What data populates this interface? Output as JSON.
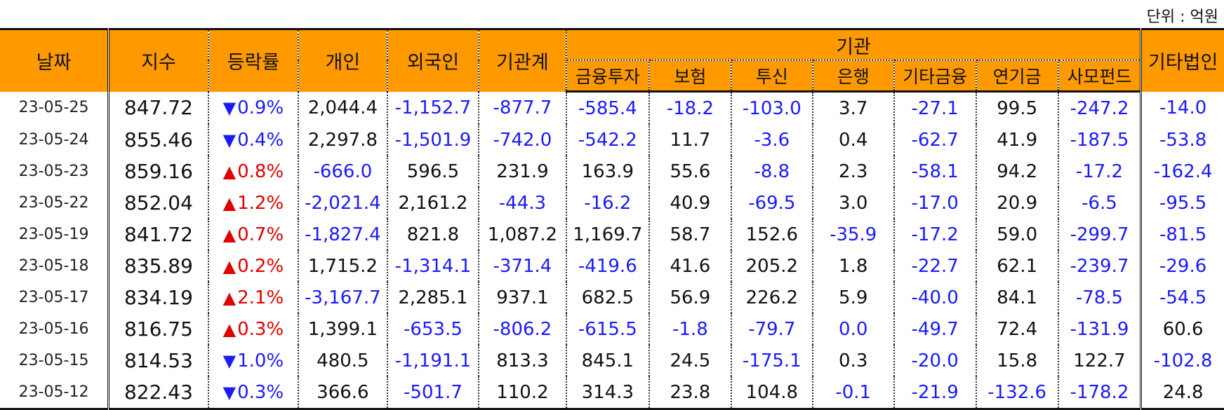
{
  "unit_label": "단위 : 억원",
  "headers": {
    "date": "날짜",
    "index": "지수",
    "change": "등락률",
    "individual": "개인",
    "foreign": "외국인",
    "inst_total": "기관계",
    "institution": "기관",
    "sub": [
      "금융투자",
      "보험",
      "투신",
      "은행",
      "기타금융",
      "연기금",
      "사모펀드"
    ],
    "other_corp": "기타법인"
  },
  "rows": [
    {
      "date": "23-05-25",
      "index": "847.72",
      "dir": "down",
      "change": "0.9%",
      "individual": "2,044.4",
      "foreign": "-1,152.7",
      "inst_total": "-877.7",
      "sub": [
        "-585.4",
        "-18.2",
        "-103.0",
        "3.7",
        "-27.1",
        "99.5",
        "-247.2"
      ],
      "other_corp": "-14.0"
    },
    {
      "date": "23-05-24",
      "index": "855.46",
      "dir": "down",
      "change": "0.4%",
      "individual": "2,297.8",
      "foreign": "-1,501.9",
      "inst_total": "-742.0",
      "sub": [
        "-542.2",
        "11.7",
        "-3.6",
        "0.4",
        "-62.7",
        "41.9",
        "-187.5"
      ],
      "other_corp": "-53.8"
    },
    {
      "date": "23-05-23",
      "index": "859.16",
      "dir": "up",
      "change": "0.8%",
      "individual": "-666.0",
      "foreign": "596.5",
      "inst_total": "231.9",
      "sub": [
        "163.9",
        "55.6",
        "-8.8",
        "2.3",
        "-58.1",
        "94.2",
        "-17.2"
      ],
      "other_corp": "-162.4"
    },
    {
      "date": "23-05-22",
      "index": "852.04",
      "dir": "up",
      "change": "1.2%",
      "individual": "-2,021.4",
      "foreign": "2,161.2",
      "inst_total": "-44.3",
      "sub": [
        "-16.2",
        "40.9",
        "-69.5",
        "3.0",
        "-17.0",
        "20.9",
        "-6.5"
      ],
      "other_corp": "-95.5"
    },
    {
      "date": "23-05-19",
      "index": "841.72",
      "dir": "up",
      "change": "0.7%",
      "individual": "-1,827.4",
      "foreign": "821.8",
      "inst_total": "1,087.2",
      "sub": [
        "1,169.7",
        "58.7",
        "152.6",
        "-35.9",
        "-17.2",
        "59.0",
        "-299.7"
      ],
      "other_corp": "-81.5"
    },
    {
      "date": "23-05-18",
      "index": "835.89",
      "dir": "up",
      "change": "0.2%",
      "individual": "1,715.2",
      "foreign": "-1,314.1",
      "inst_total": "-371.4",
      "sub": [
        "-419.6",
        "41.6",
        "205.2",
        "1.8",
        "-22.7",
        "62.1",
        "-239.7"
      ],
      "other_corp": "-29.6"
    },
    {
      "date": "23-05-17",
      "index": "834.19",
      "dir": "up",
      "change": "2.1%",
      "individual": "-3,167.7",
      "foreign": "2,285.1",
      "inst_total": "937.1",
      "sub": [
        "682.5",
        "56.9",
        "226.2",
        "5.9",
        "-40.0",
        "84.1",
        "-78.5"
      ],
      "other_corp": "-54.5"
    },
    {
      "date": "23-05-16",
      "index": "816.75",
      "dir": "up",
      "change": "0.3%",
      "individual": "1,399.1",
      "foreign": "-653.5",
      "inst_total": "-806.2",
      "sub": [
        "-615.5",
        "-1.8",
        "-79.7",
        "0.0",
        "-49.7",
        "72.4",
        "-131.9"
      ],
      "other_corp": "60.6"
    },
    {
      "date": "23-05-15",
      "index": "814.53",
      "dir": "down",
      "change": "1.0%",
      "individual": "480.5",
      "foreign": "-1,191.1",
      "inst_total": "813.3",
      "sub": [
        "845.1",
        "24.5",
        "-175.1",
        "0.3",
        "-20.0",
        "15.8",
        "122.7"
      ],
      "other_corp": "-102.8"
    },
    {
      "date": "23-05-12",
      "index": "822.43",
      "dir": "down",
      "change": "0.3%",
      "individual": "366.6",
      "foreign": "-501.7",
      "inst_total": "110.2",
      "sub": [
        "314.3",
        "23.8",
        "104.8",
        "-0.1",
        "-21.9",
        "-132.6",
        "-178.2"
      ],
      "other_corp": "24.8"
    }
  ],
  "colors": {
    "header_bg": "#ff9900",
    "negative": "#1a1aff",
    "rise": "#e00000",
    "fall": "#1a1aff"
  },
  "blue_zero_cells": [
    [
      7,
      "sub",
      3
    ]
  ]
}
